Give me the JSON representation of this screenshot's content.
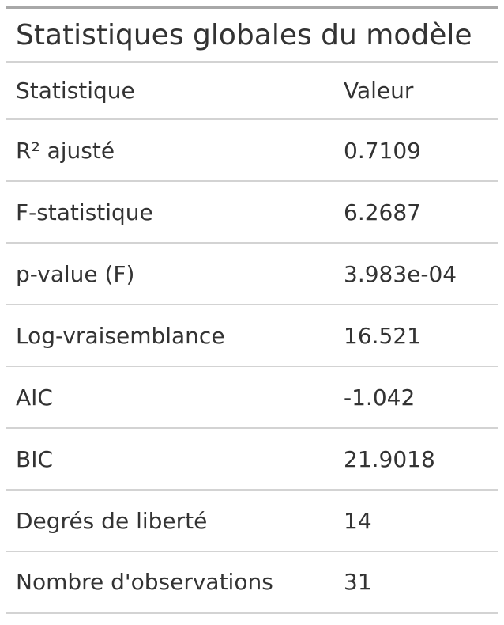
{
  "table": {
    "title": "Statistiques globales du modèle",
    "columns": [
      "Statistique",
      "Valeur"
    ],
    "rows": [
      {
        "stat": "R² ajusté",
        "value": "0.7109"
      },
      {
        "stat": "F-statistique",
        "value": "6.2687"
      },
      {
        "stat": "p-value (F)",
        "value": "3.983e-04"
      },
      {
        "stat": "Log-vraisemblance",
        "value": "16.521"
      },
      {
        "stat": "AIC",
        "value": "-1.042"
      },
      {
        "stat": "BIC",
        "value": "21.9018"
      },
      {
        "stat": "Degrés de liberté",
        "value": "14"
      },
      {
        "stat": "Nombre d'observations",
        "value": "31"
      }
    ]
  }
}
